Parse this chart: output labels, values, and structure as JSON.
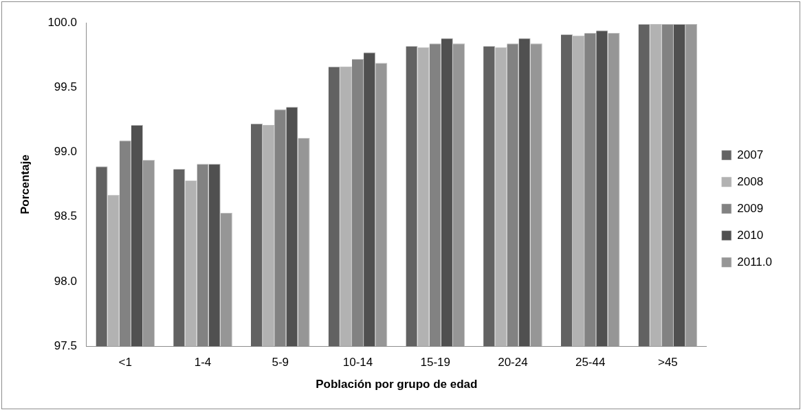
{
  "chart_data": {
    "type": "bar",
    "xlabel": "Población por grupo de edad",
    "ylabel": "Porcentaje",
    "categories": [
      "<1",
      "1-4",
      "5-9",
      "10-14",
      "15-19",
      "20-24",
      "25-44",
      ">45"
    ],
    "series": [
      {
        "name": "2007",
        "color": "#626262",
        "values": [
          98.89,
          98.87,
          99.22,
          99.66,
          99.82,
          99.82,
          99.91,
          99.99
        ]
      },
      {
        "name": "2008",
        "color": "#b2b2b2",
        "values": [
          98.67,
          98.78,
          99.21,
          99.66,
          99.81,
          99.81,
          99.9,
          99.99
        ]
      },
      {
        "name": "2009",
        "color": "#828282",
        "values": [
          99.09,
          98.91,
          99.33,
          99.72,
          99.84,
          99.84,
          99.92,
          99.99
        ]
      },
      {
        "name": "2010",
        "color": "#505050",
        "values": [
          99.21,
          98.91,
          99.35,
          99.77,
          99.88,
          99.88,
          99.94,
          99.99
        ]
      },
      {
        "name": "2011.0",
        "color": "#969696",
        "values": [
          98.94,
          98.53,
          99.11,
          99.69,
          99.84,
          99.84,
          99.92,
          99.99
        ]
      }
    ],
    "ylim": [
      97.5,
      100
    ],
    "yticks": [
      {
        "value": 97.5,
        "label": "97.5"
      },
      {
        "value": 98,
        "label": "98.0"
      },
      {
        "value": 98.5,
        "label": "98.5"
      },
      {
        "value": 99,
        "label": "99.0"
      },
      {
        "value": 99.5,
        "label": "99.5"
      },
      {
        "value": 100,
        "label": "100.0"
      }
    ],
    "grid": false,
    "legend": "right"
  }
}
